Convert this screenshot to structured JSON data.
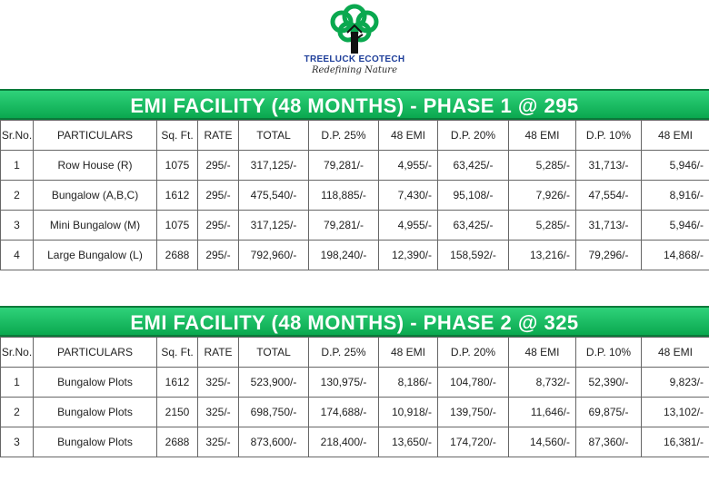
{
  "logo": {
    "icon": "tree-house-icon",
    "brand": "TREELUCK ECOTECH",
    "tagline": "Redefining Nature",
    "color": "#0aa84f"
  },
  "headers": [
    "Sr.No.",
    "PARTICULARS",
    "Sq. Ft.",
    "RATE",
    "TOTAL",
    "D.P. 25%",
    "48 EMI",
    "D.P. 20%",
    "48 EMI",
    "D.P. 10%",
    "48 EMI"
  ],
  "phase1": {
    "title": "EMI FACILITY (48 MONTHS) - PHASE 1 @ 295",
    "rows": [
      [
        "1",
        "Row House (R)",
        "1075",
        "295/-",
        "317,125/-",
        "79,281/-",
        "4,955/-",
        "63,425/-",
        "5,285/-",
        "31,713/-",
        "5,946/-"
      ],
      [
        "2",
        "Bungalow (A,B,C)",
        "1612",
        "295/-",
        "475,540/-",
        "118,885/-",
        "7,430/-",
        "95,108/-",
        "7,926/-",
        "47,554/-",
        "8,916/-"
      ],
      [
        "3",
        "Mini Bungalow (M)",
        "1075",
        "295/-",
        "317,125/-",
        "79,281/-",
        "4,955/-",
        "63,425/-",
        "5,285/-",
        "31,713/-",
        "5,946/-"
      ],
      [
        "4",
        "Large Bungalow (L)",
        "2688",
        "295/-",
        "792,960/-",
        "198,240/-",
        "12,390/-",
        "158,592/-",
        "13,216/-",
        "79,296/-",
        "14,868/-"
      ]
    ]
  },
  "phase2": {
    "title": "EMI FACILITY (48 MONTHS) - PHASE 2 @ 325",
    "rows": [
      [
        "1",
        "Bungalow Plots",
        "1612",
        "325/-",
        "523,900/-",
        "130,975/-",
        "8,186/-",
        "104,780/-",
        "8,732/-",
        "52,390/-",
        "9,823/-"
      ],
      [
        "2",
        "Bungalow Plots",
        "2150",
        "325/-",
        "698,750/-",
        "174,688/-",
        "10,918/-",
        "139,750/-",
        "11,646/-",
        "69,875/-",
        "13,102/-"
      ],
      [
        "3",
        "Bungalow Plots",
        "2688",
        "325/-",
        "873,600/-",
        "218,400/-",
        "13,650/-",
        "174,720/-",
        "14,560/-",
        "87,360/-",
        "16,381/-"
      ]
    ]
  }
}
